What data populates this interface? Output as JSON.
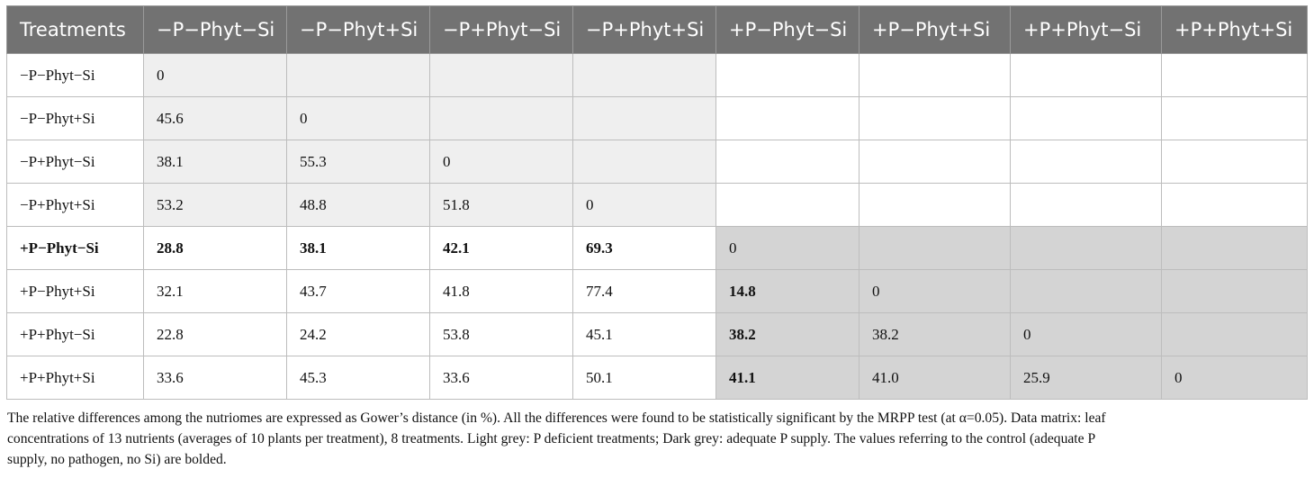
{
  "table": {
    "corner_header": "Treatments",
    "column_headers": [
      "−P−Phyt−Si",
      "−P−Phyt+Si",
      "−P+Phyt−Si",
      "−P+Phyt+Si",
      "+P−Phyt−Si",
      "+P−Phyt+Si",
      "+P+Phyt−Si",
      "+P+Phyt+Si"
    ],
    "rows": [
      {
        "label": "−P−Phyt−Si",
        "bold_label": false,
        "cells": [
          "0",
          "",
          "",
          "",
          "",
          "",
          "",
          ""
        ],
        "bold": [
          false,
          false,
          false,
          false,
          false,
          false,
          false,
          false
        ],
        "shade": [
          "light",
          "light",
          "light",
          "light",
          "white",
          "white",
          "white",
          "white"
        ]
      },
      {
        "label": "−P−Phyt+Si",
        "bold_label": false,
        "cells": [
          "45.6",
          "0",
          "",
          "",
          "",
          "",
          "",
          ""
        ],
        "bold": [
          false,
          false,
          false,
          false,
          false,
          false,
          false,
          false
        ],
        "shade": [
          "light",
          "light",
          "light",
          "light",
          "white",
          "white",
          "white",
          "white"
        ]
      },
      {
        "label": "−P+Phyt−Si",
        "bold_label": false,
        "cells": [
          "38.1",
          "55.3",
          "0",
          "",
          "",
          "",
          "",
          ""
        ],
        "bold": [
          false,
          false,
          false,
          false,
          false,
          false,
          false,
          false
        ],
        "shade": [
          "light",
          "light",
          "light",
          "light",
          "white",
          "white",
          "white",
          "white"
        ]
      },
      {
        "label": "−P+Phyt+Si",
        "bold_label": false,
        "cells": [
          "53.2",
          "48.8",
          "51.8",
          "0",
          "",
          "",
          "",
          ""
        ],
        "bold": [
          false,
          false,
          false,
          false,
          false,
          false,
          false,
          false
        ],
        "shade": [
          "light",
          "light",
          "light",
          "light",
          "white",
          "white",
          "white",
          "white"
        ]
      },
      {
        "label": "+P−Phyt−Si",
        "bold_label": true,
        "cells": [
          "28.8",
          "38.1",
          "42.1",
          "69.3",
          "0",
          "",
          "",
          ""
        ],
        "bold": [
          true,
          true,
          true,
          true,
          false,
          false,
          false,
          false
        ],
        "shade": [
          "white",
          "white",
          "white",
          "white",
          "dark",
          "dark",
          "dark",
          "dark"
        ]
      },
      {
        "label": "+P−Phyt+Si",
        "bold_label": false,
        "cells": [
          "32.1",
          "43.7",
          "41.8",
          "77.4",
          "14.8",
          "0",
          "",
          ""
        ],
        "bold": [
          false,
          false,
          false,
          false,
          true,
          false,
          false,
          false
        ],
        "shade": [
          "white",
          "white",
          "white",
          "white",
          "dark",
          "dark",
          "dark",
          "dark"
        ]
      },
      {
        "label": "+P+Phyt−Si",
        "bold_label": false,
        "cells": [
          "22.8",
          "24.2",
          "53.8",
          "45.1",
          "38.2",
          "38.2",
          "0",
          ""
        ],
        "bold": [
          false,
          false,
          false,
          false,
          true,
          false,
          false,
          false
        ],
        "shade": [
          "white",
          "white",
          "white",
          "white",
          "dark",
          "dark",
          "dark",
          "dark"
        ]
      },
      {
        "label": "+P+Phyt+Si",
        "bold_label": false,
        "cells": [
          "33.6",
          "45.3",
          "33.6",
          "50.1",
          "41.1",
          "41.0",
          "25.9",
          "0"
        ],
        "bold": [
          false,
          false,
          false,
          false,
          true,
          false,
          false,
          false
        ],
        "shade": [
          "white",
          "white",
          "white",
          "white",
          "dark",
          "dark",
          "dark",
          "dark"
        ]
      }
    ]
  },
  "footnote": {
    "line1": "The relative differences among the nutriomes are expressed as Gower’s distance (in %). All the differences were found to be statistically significant by the MRPP test (at α=0.05). Data matrix: leaf",
    "line2": "concentrations of 13 nutrients (averages of 10 plants per treatment), 8 treatments. Light grey: P deficient treatments; Dark grey: adequate P supply. The values referring to the control (adequate P",
    "line3": "supply, no pathogen, no Si) are bolded."
  },
  "colors": {
    "header_bg": "#727272",
    "light_grey": "#efefef",
    "dark_grey": "#d4d4d4"
  }
}
